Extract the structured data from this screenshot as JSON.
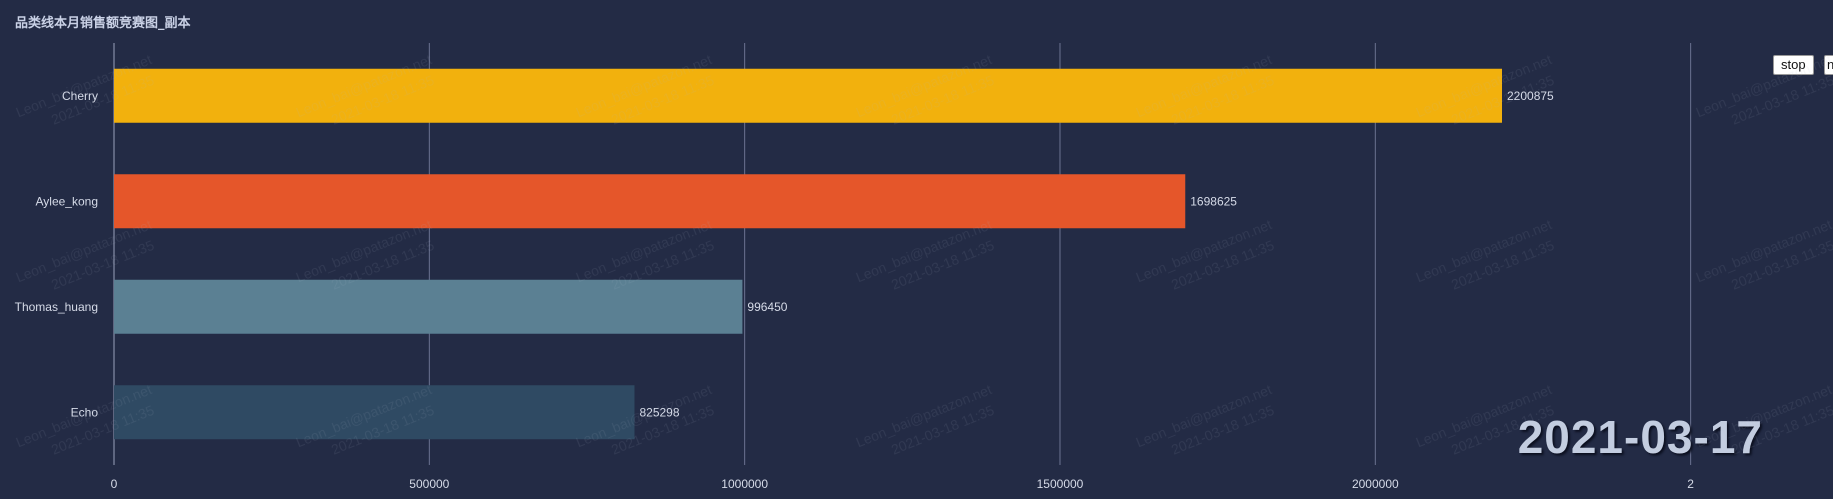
{
  "panel": {
    "title": "品类线本月销售额竞赛图_副本"
  },
  "controls": {
    "stop_label": "stop",
    "next_label": "n"
  },
  "date_label": "2021-03-17",
  "watermark": {
    "line1": "Leon_bai@patazon.net",
    "line2": "2021-03-18 11:35"
  },
  "colors": {
    "background": "#232b45",
    "grid": "#6b7391",
    "label": "#d6dbe8"
  },
  "chart_data": {
    "type": "bar",
    "orientation": "horizontal",
    "title": "",
    "categories": [
      "Cherry",
      "Aylee_kong",
      "Thomas_huang",
      "Echo"
    ],
    "values": [
      2200875,
      1698625,
      996450,
      825298
    ],
    "bar_colors": [
      "#f2b10d",
      "#e5562a",
      "#5b8093",
      "#2f4a63"
    ],
    "x_ticks": [
      "0",
      "500000",
      "1000000",
      "1500000",
      "2000000",
      "2"
    ],
    "xlim": [
      0,
      2500000
    ],
    "grid": true,
    "data_labels": true
  }
}
